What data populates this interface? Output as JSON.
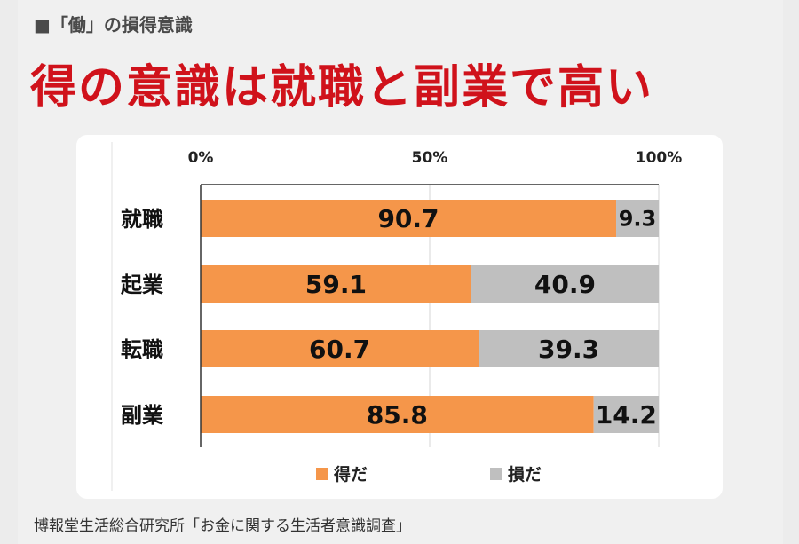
{
  "header": {
    "subtitle": "■「働」の損得意識",
    "headline": "得の意識は就職と副業で高い"
  },
  "footer": {
    "source": "博報堂生活総合研究所「お金に関する生活者意識調査」"
  },
  "colors": {
    "headline": "#d0121b",
    "gain": "#f5964a",
    "loss": "#bfbfbf"
  },
  "chart_data": {
    "type": "bar",
    "orientation": "horizontal",
    "stacked": true,
    "categories": [
      "就職",
      "起業",
      "転職",
      "副業"
    ],
    "series": [
      {
        "name": "得だ",
        "values": [
          90.7,
          59.1,
          60.7,
          85.8
        ],
        "color": "#f5964a"
      },
      {
        "name": "損だ",
        "values": [
          9.3,
          40.9,
          39.3,
          14.2
        ],
        "color": "#bfbfbf"
      }
    ],
    "xticks": [
      "0%",
      "50%",
      "100%"
    ],
    "xlim": [
      0,
      100
    ],
    "grid": true,
    "legend": "bottom"
  }
}
